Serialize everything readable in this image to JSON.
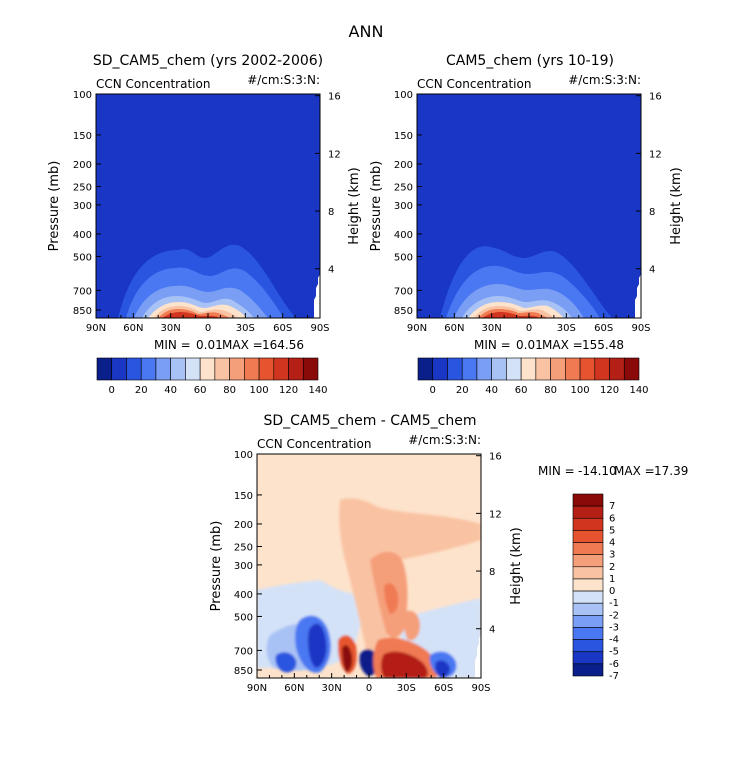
{
  "figure": {
    "title": "ANN"
  },
  "chart_data": [
    {
      "type": "heatmap",
      "title": "SD_CAM5_chem (yrs 2002-2006)",
      "left_label": "CCN Concentration",
      "right_label": "#/cm:S:3:N:",
      "ylabel": "Pressure (mb)",
      "y2label": "Height (km)",
      "x_ticks": [
        "90N",
        "60N",
        "30N",
        "0",
        "30S",
        "60S",
        "90S"
      ],
      "y_ticks": [
        "100",
        "150",
        "200",
        "250",
        "300",
        "400",
        "500",
        "700",
        "850"
      ],
      "y2_ticks": [
        "16",
        "12",
        "8",
        "4"
      ],
      "min_label": "MIN =",
      "min_value": "0.01",
      "max_label": "MAX =",
      "max_value": "164.56",
      "colorbar_ticks": [
        "0",
        "20",
        "40",
        "60",
        "80",
        "100",
        "120",
        "140"
      ],
      "colorbar_colors": [
        "#0b1f8a",
        "#1a36c4",
        "#2a55e0",
        "#4a78f2",
        "#7a9ef4",
        "#a9c2f5",
        "#d4e2f8",
        "#fde3cc",
        "#f9c3a3",
        "#f59f7a",
        "#f07a52",
        "#e6542f",
        "#d2351f",
        "#b41f16",
        "#8a0a0a"
      ],
      "x": [
        -90,
        -60,
        -30,
        0,
        30,
        60,
        90
      ],
      "levels_mb": [
        100,
        150,
        200,
        250,
        300,
        400,
        500,
        700,
        850
      ],
      "background_value": 0,
      "feature": "surface maximum near 30N (up to ~140), elevated values below 500 mb between 60N and 30S",
      "zlim": [
        0,
        164.56
      ]
    },
    {
      "type": "heatmap",
      "title": "CAM5_chem (yrs 10-19)",
      "left_label": "CCN Concentration",
      "right_label": "#/cm:S:3:N:",
      "ylabel": "Pressure (mb)",
      "y2label": "Height (km)",
      "x_ticks": [
        "90N",
        "60N",
        "30N",
        "0",
        "30S",
        "60S",
        "90S"
      ],
      "y_ticks": [
        "100",
        "150",
        "200",
        "250",
        "300",
        "400",
        "500",
        "700",
        "850"
      ],
      "y2_ticks": [
        "16",
        "12",
        "8",
        "4"
      ],
      "min_label": "MIN =",
      "min_value": "0.01",
      "max_label": "MAX =",
      "max_value": "155.48",
      "colorbar_ticks": [
        "0",
        "20",
        "40",
        "60",
        "80",
        "100",
        "120",
        "140"
      ],
      "colorbar_colors": [
        "#0b1f8a",
        "#1a36c4",
        "#2a55e0",
        "#4a78f2",
        "#7a9ef4",
        "#a9c2f5",
        "#d4e2f8",
        "#fde3cc",
        "#f9c3a3",
        "#f59f7a",
        "#f07a52",
        "#e6542f",
        "#d2351f",
        "#b41f16",
        "#8a0a0a"
      ],
      "x": [
        -90,
        -60,
        -30,
        0,
        30,
        60,
        90
      ],
      "levels_mb": [
        100,
        150,
        200,
        250,
        300,
        400,
        500,
        700,
        850
      ],
      "background_value": 0,
      "feature": "surface maximum near 30N (up to ~140), elevated values below 500 mb between 60N and 30S",
      "zlim": [
        0,
        155.48
      ]
    },
    {
      "type": "heatmap",
      "title": "SD_CAM5_chem - CAM5_chem",
      "left_label": "CCN Concentration",
      "right_label": "#/cm:S:3:N:",
      "ylabel": "Pressure (mb)",
      "y2label": "Height (km)",
      "x_ticks": [
        "90N",
        "60N",
        "30N",
        "0",
        "30S",
        "60S",
        "90S"
      ],
      "y_ticks": [
        "100",
        "150",
        "200",
        "250",
        "300",
        "400",
        "500",
        "700",
        "850"
      ],
      "y2_ticks": [
        "16",
        "12",
        "8",
        "4"
      ],
      "min_label": "MIN =",
      "min_value": "-14.10",
      "max_label": "MAX =",
      "max_value": "17.39",
      "colorbar_ticks": [
        "7",
        "6",
        "5",
        "4",
        "3",
        "2",
        "1",
        "0",
        "-1",
        "-2",
        "-3",
        "-4",
        "-5",
        "-6",
        "-7"
      ],
      "colorbar_colors": [
        "#8a0a0a",
        "#b41f16",
        "#d2351f",
        "#e6542f",
        "#f07a52",
        "#f59f7a",
        "#f9c3a3",
        "#fde3cc",
        "#d4e2f8",
        "#a9c2f5",
        "#7a9ef4",
        "#4a78f2",
        "#2a55e0",
        "#1a36c4",
        "#0b1f8a"
      ],
      "x": [
        -90,
        -60,
        -30,
        0,
        30,
        60,
        90
      ],
      "levels_mb": [
        100,
        150,
        200,
        250,
        300,
        400,
        500,
        700,
        850
      ],
      "background_value": 0.5,
      "feature": "positive anomaly plume above equator-30S, negative (blue) lobes near 30N-45N and 45S-60S near surface, strong positive near surface 0-30S",
      "zlim": [
        -14.1,
        17.39
      ]
    }
  ]
}
